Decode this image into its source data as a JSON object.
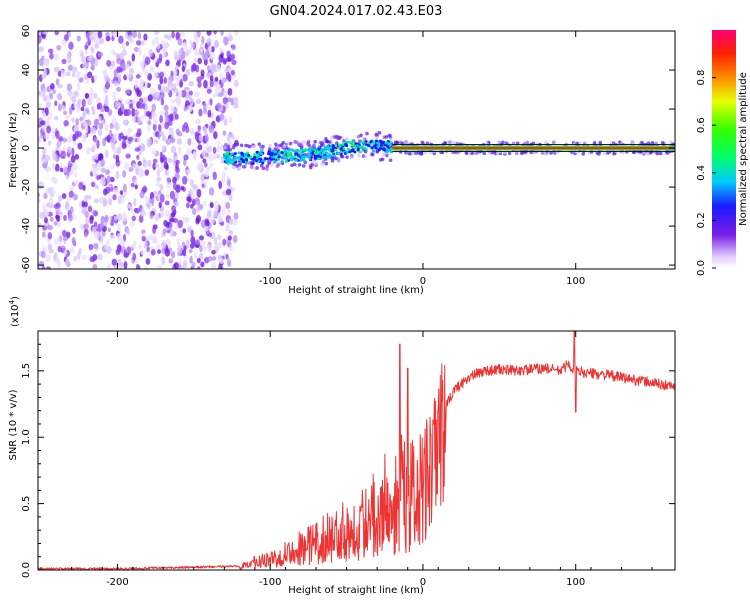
{
  "title": "GN04.2024.017.02.43.E03",
  "chart_data": [
    {
      "type": "heatmap",
      "name": "spectrogram",
      "xlabel": "Height of straight line (km)",
      "ylabel": "Frequency (Hz)",
      "xlim": [
        -252,
        165
      ],
      "ylim": [
        -62,
        60
      ],
      "x_ticks": [
        -200,
        -100,
        0,
        100
      ],
      "x_tick_labels": [
        "-200",
        "-100",
        "0",
        "100"
      ],
      "y_ticks": [
        -60,
        -40,
        -20,
        0,
        20,
        40,
        60
      ],
      "y_tick_labels": [
        "-60",
        "-40",
        "-20",
        "0",
        "20",
        "40",
        "60"
      ],
      "noise_region_km": [
        -252,
        -122
      ],
      "signal_ridge": [
        {
          "x": -130,
          "f": -5
        },
        {
          "x": -110,
          "f": -5
        },
        {
          "x": -90,
          "f": -4
        },
        {
          "x": -70,
          "f": -3
        },
        {
          "x": -50,
          "f": 0
        },
        {
          "x": -30,
          "f": 1
        },
        {
          "x": -10,
          "f": 0
        },
        {
          "x": 10,
          "f": 0
        },
        {
          "x": 50,
          "f": 0
        },
        {
          "x": 100,
          "f": 0
        },
        {
          "x": 165,
          "f": 0
        }
      ],
      "colorbar": {
        "label": "Normalized spectral amplitude",
        "range": [
          0,
          1
        ],
        "ticks": [
          0.0,
          0.2,
          0.4,
          0.6,
          0.8
        ],
        "tick_labels": [
          "0.0",
          "0.2",
          "0.4",
          "0.6",
          "0.8"
        ]
      }
    },
    {
      "type": "line",
      "name": "snr",
      "xlabel": "Height of straight line (km)",
      "ylabel": "SNR (10 * v/v)",
      "multiplier_label": "(x10",
      "multiplier_exp": "4",
      "multiplier_close": ")",
      "xlim": [
        -252,
        165
      ],
      "ylim": [
        0,
        1.8
      ],
      "x_ticks": [
        -200,
        -100,
        0,
        100
      ],
      "x_tick_labels": [
        "-200",
        "-100",
        "0",
        "100"
      ],
      "y_ticks": [
        0.0,
        0.5,
        1.0,
        1.5
      ],
      "y_tick_labels": [
        "0.0",
        "0.5",
        "1.0",
        "1.5"
      ],
      "series": [
        {
          "name": "SNR",
          "color": "#ee3333",
          "x": [
            -252,
            -200,
            -150,
            -120,
            -110,
            -100,
            -90,
            -80,
            -70,
            -60,
            -50,
            -40,
            -30,
            -20,
            -15,
            -10,
            -5,
            0,
            5,
            10,
            20,
            30,
            40,
            50,
            60,
            70,
            80,
            90,
            95,
            100,
            110,
            120,
            130,
            140,
            150,
            165
          ],
          "y": [
            0.01,
            0.01,
            0.02,
            0.03,
            0.08,
            0.1,
            0.18,
            0.22,
            0.28,
            0.33,
            0.4,
            0.45,
            0.6,
            0.7,
            0.85,
            0.75,
            0.72,
            0.8,
            0.95,
            1.1,
            1.35,
            1.45,
            1.5,
            1.51,
            1.5,
            1.51,
            1.52,
            1.5,
            1.55,
            1.5,
            1.48,
            1.47,
            1.45,
            1.43,
            1.41,
            1.38
          ]
        }
      ],
      "spikes": [
        {
          "x": -15,
          "y": 1.7
        },
        {
          "x": 99,
          "y": 1.8
        },
        {
          "x": 100,
          "y": 1.19
        },
        {
          "x": -10,
          "y": 1.52
        }
      ]
    }
  ]
}
